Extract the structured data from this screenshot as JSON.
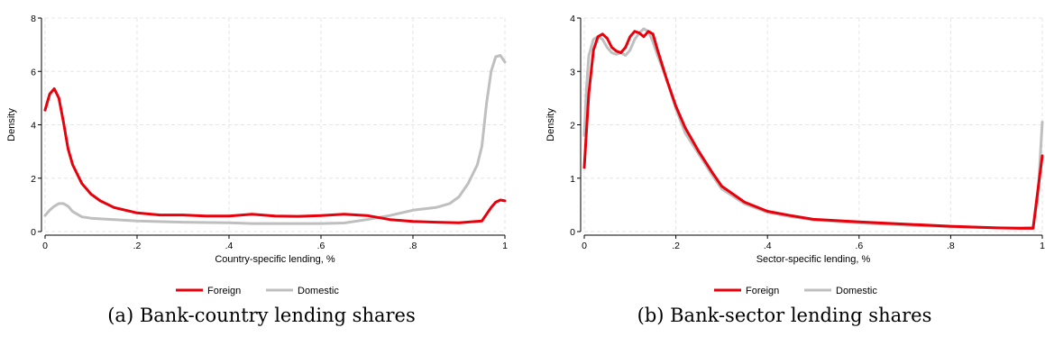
{
  "colors": {
    "foreign": "#e8000b",
    "domestic": "#bfbfbf",
    "grid": "#e6e6e6"
  },
  "chart_data": [
    {
      "type": "line",
      "caption": "(a) Bank-country lending shares",
      "xlabel": "Country-specific lending, %",
      "ylabel": "Density",
      "xlim": [
        0,
        1
      ],
      "ylim": [
        0,
        8
      ],
      "xticks": [
        0,
        0.2,
        0.4,
        0.6,
        0.8,
        1
      ],
      "xtick_labels": [
        "0",
        ".2",
        ".4",
        ".6",
        ".8",
        "1"
      ],
      "yticks": [
        0,
        2,
        4,
        6,
        8
      ],
      "ytick_labels": [
        "0",
        "2",
        "4",
        "6",
        "8"
      ],
      "grid": true,
      "legend_position": "bottom",
      "series": [
        {
          "name": "Foreign",
          "x": [
            0,
            0.01,
            0.02,
            0.03,
            0.04,
            0.05,
            0.06,
            0.08,
            0.1,
            0.12,
            0.15,
            0.2,
            0.25,
            0.3,
            0.35,
            0.4,
            0.45,
            0.5,
            0.55,
            0.6,
            0.65,
            0.7,
            0.75,
            0.8,
            0.85,
            0.9,
            0.95,
            0.97,
            0.98,
            0.99,
            1
          ],
          "y": [
            4.55,
            5.15,
            5.35,
            5.0,
            4.1,
            3.1,
            2.5,
            1.8,
            1.4,
            1.15,
            0.9,
            0.7,
            0.62,
            0.62,
            0.58,
            0.58,
            0.65,
            0.58,
            0.57,
            0.6,
            0.65,
            0.6,
            0.45,
            0.38,
            0.35,
            0.33,
            0.4,
            0.9,
            1.1,
            1.18,
            1.15
          ]
        },
        {
          "name": "Domestic",
          "x": [
            0,
            0.01,
            0.02,
            0.03,
            0.04,
            0.05,
            0.06,
            0.08,
            0.1,
            0.15,
            0.2,
            0.3,
            0.4,
            0.45,
            0.5,
            0.6,
            0.65,
            0.7,
            0.75,
            0.8,
            0.85,
            0.88,
            0.9,
            0.92,
            0.94,
            0.95,
            0.96,
            0.97,
            0.98,
            0.99,
            1
          ],
          "y": [
            0.6,
            0.8,
            0.95,
            1.05,
            1.05,
            0.95,
            0.75,
            0.55,
            0.5,
            0.45,
            0.4,
            0.35,
            0.33,
            0.3,
            0.3,
            0.3,
            0.32,
            0.45,
            0.6,
            0.8,
            0.9,
            1.05,
            1.3,
            1.8,
            2.5,
            3.2,
            4.8,
            6.0,
            6.55,
            6.6,
            6.35
          ]
        }
      ]
    },
    {
      "type": "line",
      "caption": "(b) Bank-sector lending shares",
      "xlabel": "Sector-specific lending, %",
      "ylabel": "Density",
      "xlim": [
        0,
        1
      ],
      "ylim": [
        0,
        4
      ],
      "xticks": [
        0,
        0.2,
        0.4,
        0.6,
        0.8,
        1
      ],
      "xtick_labels": [
        "0",
        ".2",
        ".4",
        ".6",
        ".8",
        "1"
      ],
      "yticks": [
        0,
        1,
        2,
        3,
        4
      ],
      "ytick_labels": [
        "0",
        "1",
        "2",
        "3",
        "4"
      ],
      "grid": true,
      "legend_position": "bottom",
      "series": [
        {
          "name": "Foreign",
          "x": [
            0,
            0.005,
            0.01,
            0.02,
            0.03,
            0.04,
            0.05,
            0.06,
            0.07,
            0.08,
            0.09,
            0.1,
            0.11,
            0.12,
            0.13,
            0.14,
            0.15,
            0.16,
            0.18,
            0.2,
            0.22,
            0.25,
            0.28,
            0.3,
            0.35,
            0.4,
            0.45,
            0.5,
            0.6,
            0.7,
            0.8,
            0.9,
            0.95,
            0.98,
            0.99,
            1
          ],
          "y": [
            1.2,
            1.9,
            2.6,
            3.4,
            3.65,
            3.7,
            3.62,
            3.45,
            3.38,
            3.35,
            3.45,
            3.65,
            3.75,
            3.72,
            3.65,
            3.75,
            3.7,
            3.4,
            2.85,
            2.35,
            1.95,
            1.5,
            1.1,
            0.85,
            0.55,
            0.38,
            0.3,
            0.23,
            0.18,
            0.14,
            0.1,
            0.07,
            0.06,
            0.06,
            0.75,
            1.42
          ]
        },
        {
          "name": "Domestic",
          "x": [
            0,
            0.005,
            0.01,
            0.02,
            0.03,
            0.04,
            0.05,
            0.06,
            0.07,
            0.08,
            0.09,
            0.1,
            0.11,
            0.12,
            0.13,
            0.14,
            0.15,
            0.16,
            0.18,
            0.2,
            0.22,
            0.25,
            0.28,
            0.3,
            0.35,
            0.4,
            0.45,
            0.5,
            0.6,
            0.7,
            0.8,
            0.9,
            0.95,
            0.98,
            0.99,
            1
          ],
          "y": [
            1.8,
            2.7,
            3.3,
            3.6,
            3.65,
            3.6,
            3.45,
            3.35,
            3.32,
            3.35,
            3.3,
            3.4,
            3.6,
            3.72,
            3.8,
            3.75,
            3.55,
            3.3,
            2.85,
            2.3,
            1.85,
            1.45,
            1.05,
            0.8,
            0.52,
            0.36,
            0.28,
            0.22,
            0.16,
            0.12,
            0.09,
            0.07,
            0.07,
            0.08,
            0.6,
            2.05
          ]
        }
      ]
    }
  ]
}
